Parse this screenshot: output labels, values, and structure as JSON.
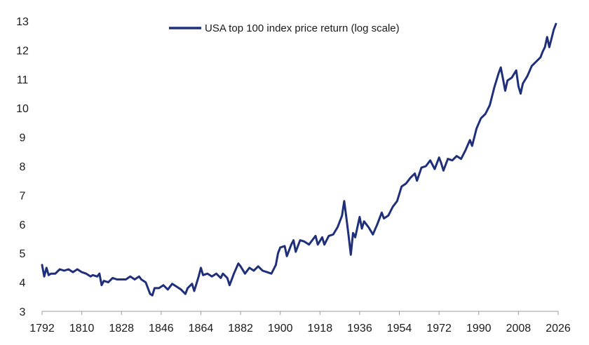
{
  "chart_data": {
    "type": "line",
    "title": "",
    "xlabel": "",
    "ylabel": "",
    "xlim": [
      1792,
      2026
    ],
    "ylim": [
      3,
      13
    ],
    "x_ticks": [
      1792,
      1810,
      1828,
      1846,
      1864,
      1882,
      1900,
      1918,
      1936,
      1954,
      1972,
      1990,
      2008,
      2026
    ],
    "y_ticks": [
      3,
      4,
      5,
      6,
      7,
      8,
      9,
      10,
      11,
      12,
      13
    ],
    "grid": false,
    "legend": {
      "position": "top-center"
    },
    "series": [
      {
        "name": "USA top 100 index price return (log scale)",
        "color": "#1f2f7a",
        "points": [
          [
            1792,
            4.6
          ],
          [
            1793,
            4.2
          ],
          [
            1794,
            4.5
          ],
          [
            1795,
            4.25
          ],
          [
            1796,
            4.3
          ],
          [
            1798,
            4.3
          ],
          [
            1800,
            4.45
          ],
          [
            1802,
            4.4
          ],
          [
            1804,
            4.45
          ],
          [
            1806,
            4.35
          ],
          [
            1808,
            4.45
          ],
          [
            1810,
            4.35
          ],
          [
            1812,
            4.3
          ],
          [
            1814,
            4.2
          ],
          [
            1815,
            4.25
          ],
          [
            1817,
            4.2
          ],
          [
            1818,
            4.3
          ],
          [
            1819,
            3.9
          ],
          [
            1820,
            4.05
          ],
          [
            1822,
            4.0
          ],
          [
            1824,
            4.15
          ],
          [
            1826,
            4.1
          ],
          [
            1828,
            4.1
          ],
          [
            1830,
            4.1
          ],
          [
            1832,
            4.2
          ],
          [
            1834,
            4.1
          ],
          [
            1836,
            4.2
          ],
          [
            1837,
            4.1
          ],
          [
            1839,
            4.0
          ],
          [
            1841,
            3.6
          ],
          [
            1842,
            3.55
          ],
          [
            1843,
            3.8
          ],
          [
            1845,
            3.8
          ],
          [
            1847,
            3.9
          ],
          [
            1849,
            3.75
          ],
          [
            1851,
            3.95
          ],
          [
            1853,
            3.85
          ],
          [
            1855,
            3.75
          ],
          [
            1857,
            3.6
          ],
          [
            1858,
            3.8
          ],
          [
            1860,
            3.95
          ],
          [
            1861,
            3.7
          ],
          [
            1863,
            4.2
          ],
          [
            1864,
            4.5
          ],
          [
            1865,
            4.25
          ],
          [
            1867,
            4.3
          ],
          [
            1869,
            4.2
          ],
          [
            1871,
            4.3
          ],
          [
            1873,
            4.15
          ],
          [
            1874,
            4.3
          ],
          [
            1876,
            4.15
          ],
          [
            1877,
            3.9
          ],
          [
            1879,
            4.3
          ],
          [
            1881,
            4.65
          ],
          [
            1882,
            4.55
          ],
          [
            1884,
            4.3
          ],
          [
            1886,
            4.5
          ],
          [
            1888,
            4.4
          ],
          [
            1890,
            4.55
          ],
          [
            1892,
            4.4
          ],
          [
            1894,
            4.35
          ],
          [
            1896,
            4.3
          ],
          [
            1898,
            4.6
          ],
          [
            1899,
            5.0
          ],
          [
            1900,
            5.2
          ],
          [
            1902,
            5.25
          ],
          [
            1903,
            4.9
          ],
          [
            1905,
            5.3
          ],
          [
            1906,
            5.45
          ],
          [
            1907,
            5.05
          ],
          [
            1909,
            5.45
          ],
          [
            1911,
            5.4
          ],
          [
            1913,
            5.3
          ],
          [
            1915,
            5.5
          ],
          [
            1916,
            5.6
          ],
          [
            1917,
            5.3
          ],
          [
            1919,
            5.55
          ],
          [
            1920,
            5.3
          ],
          [
            1922,
            5.6
          ],
          [
            1924,
            5.65
          ],
          [
            1926,
            5.9
          ],
          [
            1928,
            6.3
          ],
          [
            1929,
            6.8
          ],
          [
            1930,
            6.2
          ],
          [
            1931,
            5.6
          ],
          [
            1932,
            4.95
          ],
          [
            1933,
            5.7
          ],
          [
            1934,
            5.55
          ],
          [
            1936,
            6.25
          ],
          [
            1937,
            5.85
          ],
          [
            1938,
            6.1
          ],
          [
            1940,
            5.9
          ],
          [
            1942,
            5.65
          ],
          [
            1944,
            6.0
          ],
          [
            1946,
            6.4
          ],
          [
            1947,
            6.2
          ],
          [
            1949,
            6.3
          ],
          [
            1951,
            6.6
          ],
          [
            1953,
            6.8
          ],
          [
            1955,
            7.3
          ],
          [
            1957,
            7.4
          ],
          [
            1959,
            7.6
          ],
          [
            1961,
            7.75
          ],
          [
            1962,
            7.5
          ],
          [
            1964,
            7.95
          ],
          [
            1966,
            8.0
          ],
          [
            1968,
            8.2
          ],
          [
            1970,
            7.9
          ],
          [
            1972,
            8.3
          ],
          [
            1973,
            8.1
          ],
          [
            1974,
            7.85
          ],
          [
            1976,
            8.25
          ],
          [
            1978,
            8.2
          ],
          [
            1980,
            8.35
          ],
          [
            1982,
            8.25
          ],
          [
            1984,
            8.55
          ],
          [
            1986,
            8.9
          ],
          [
            1987,
            8.7
          ],
          [
            1989,
            9.3
          ],
          [
            1991,
            9.65
          ],
          [
            1993,
            9.8
          ],
          [
            1995,
            10.1
          ],
          [
            1997,
            10.7
          ],
          [
            1999,
            11.2
          ],
          [
            2000,
            11.4
          ],
          [
            2001,
            11.0
          ],
          [
            2002,
            10.6
          ],
          [
            2003,
            10.95
          ],
          [
            2005,
            11.05
          ],
          [
            2007,
            11.3
          ],
          [
            2008,
            10.75
          ],
          [
            2009,
            10.5
          ],
          [
            2010,
            10.85
          ],
          [
            2012,
            11.1
          ],
          [
            2014,
            11.45
          ],
          [
            2016,
            11.6
          ],
          [
            2018,
            11.75
          ],
          [
            2019,
            11.95
          ],
          [
            2020,
            12.1
          ],
          [
            2021,
            12.45
          ],
          [
            2022,
            12.1
          ],
          [
            2023,
            12.4
          ],
          [
            2024,
            12.7
          ],
          [
            2025,
            12.9
          ]
        ]
      }
    ]
  }
}
